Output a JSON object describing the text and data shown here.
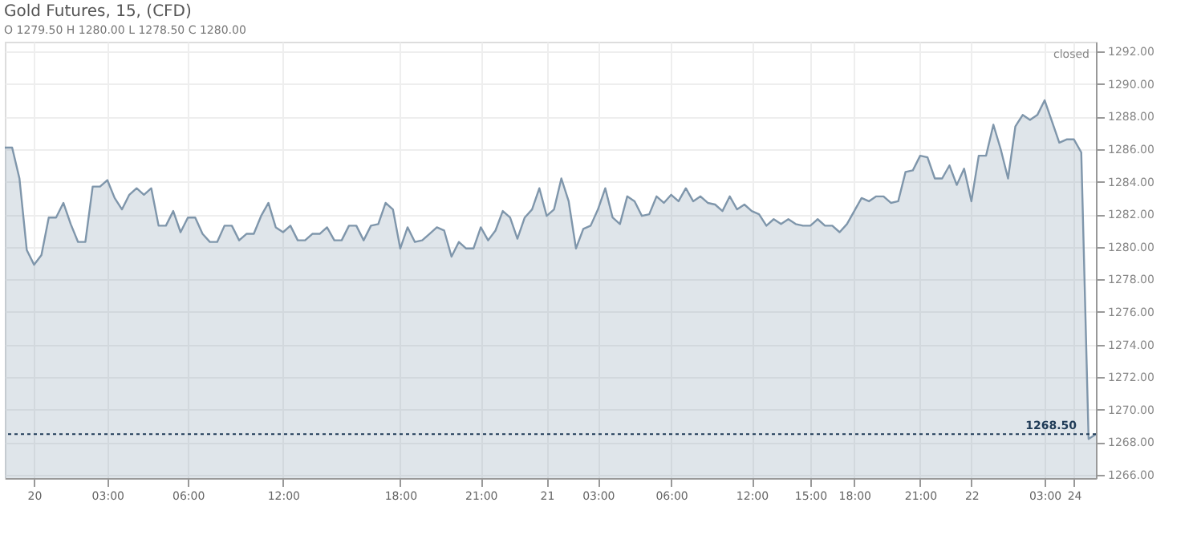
{
  "chart_data": {
    "type": "area",
    "title": "Gold Futures, 15, (CFD)",
    "subtitle": "O 1279.50 H 1280.00 L 1278.50 C 1280.00",
    "annotations": [
      "closed"
    ],
    "categories": [
      null,
      null,
      null,
      null,
      "20",
      null,
      null,
      null,
      null,
      null,
      null,
      null,
      null,
      null,
      "03:00",
      null,
      null,
      null,
      null,
      null,
      null,
      null,
      null,
      null,
      null,
      "06:00",
      null,
      null,
      null,
      null,
      null,
      null,
      null,
      null,
      null,
      null,
      null,
      null,
      "12:00",
      null,
      null,
      null,
      null,
      null,
      null,
      null,
      null,
      null,
      null,
      null,
      null,
      null,
      null,
      null,
      "18:00",
      null,
      null,
      null,
      null,
      null,
      null,
      null,
      null,
      null,
      null,
      "21:00",
      null,
      null,
      null,
      null,
      null,
      null,
      null,
      null,
      "21",
      null,
      null,
      null,
      null,
      null,
      null,
      "03:00",
      null,
      null,
      null,
      null,
      null,
      null,
      null,
      null,
      null,
      "06:00",
      null,
      null,
      null,
      null,
      null,
      null,
      null,
      null,
      null,
      null,
      "12:00",
      null,
      null,
      null,
      null,
      null,
      null,
      null,
      "15:00",
      null,
      null,
      null,
      null,
      null,
      "18:00",
      null,
      null,
      null,
      null,
      null,
      null,
      null,
      null,
      "21:00",
      null,
      null,
      null,
      null,
      null,
      null,
      "22",
      null,
      null,
      null,
      null,
      null,
      null,
      null,
      null,
      null,
      "03:00",
      null,
      null,
      null,
      "24",
      null,
      null,
      null
    ],
    "series": [
      {
        "color": "#7f96ab",
        "values": [
          1286.1,
          1286.1,
          1284.2,
          1279.8,
          1278.9,
          1279.5,
          1281.8,
          1281.8,
          1282.7,
          1281.4,
          1280.3,
          1280.3,
          1283.7,
          1283.7,
          1284.1,
          1283.0,
          1282.3,
          1283.2,
          1283.6,
          1283.2,
          1283.6,
          1281.3,
          1281.3,
          1282.2,
          1280.9,
          1281.8,
          1281.8,
          1280.8,
          1280.3,
          1280.3,
          1281.3,
          1281.3,
          1280.4,
          1280.8,
          1280.8,
          1281.9,
          1282.7,
          1281.2,
          1280.9,
          1281.3,
          1280.4,
          1280.4,
          1280.8,
          1280.8,
          1281.2,
          1280.4,
          1280.4,
          1281.3,
          1281.3,
          1280.4,
          1281.3,
          1281.4,
          1282.7,
          1282.3,
          1279.9,
          1281.2,
          1280.3,
          1280.4,
          1280.8,
          1281.2,
          1281.0,
          1279.4,
          1280.3,
          1279.9,
          1279.9,
          1281.2,
          1280.4,
          1281.0,
          1282.2,
          1281.8,
          1280.5,
          1281.8,
          1282.3,
          1283.6,
          1281.9,
          1282.3,
          1284.2,
          1282.8,
          1279.9,
          1281.1,
          1281.3,
          1282.3,
          1283.6,
          1281.8,
          1281.4,
          1283.1,
          1282.8,
          1281.9,
          1282.0,
          1283.1,
          1282.7,
          1283.2,
          1282.8,
          1283.6,
          1282.8,
          1283.1,
          1282.7,
          1282.6,
          1282.2,
          1283.1,
          1282.3,
          1282.6,
          1282.2,
          1282.0,
          1281.3,
          1281.7,
          1281.4,
          1281.7,
          1281.4,
          1281.3,
          1281.3,
          1281.7,
          1281.3,
          1281.3,
          1280.9,
          1281.4,
          1282.2,
          1283.0,
          1282.8,
          1283.1,
          1283.1,
          1282.7,
          1282.8,
          1284.6,
          1284.7,
          1285.6,
          1285.5,
          1284.2,
          1284.2,
          1285.0,
          1283.8,
          1284.8,
          1282.8,
          1285.6,
          1285.6,
          1287.5,
          1286.0,
          1284.2,
          1287.4,
          1288.1,
          1287.8,
          1288.1,
          1289.0,
          1287.7,
          1286.4,
          1286.6,
          1286.6,
          1285.8,
          1268.2,
          1268.5
        ]
      }
    ],
    "ylim": [
      1265.8,
      1292.6
    ],
    "yticks": [
      {
        "value": 1266,
        "label": "1266.00"
      },
      {
        "value": 1268,
        "label": "1268.00"
      },
      {
        "value": 1270,
        "label": "1270.00"
      },
      {
        "value": 1272,
        "label": "1272.00"
      },
      {
        "value": 1274,
        "label": "1274.00"
      },
      {
        "value": 1276,
        "label": "1276.00"
      },
      {
        "value": 1278,
        "label": "1278.00"
      },
      {
        "value": 1280,
        "label": "1280.00"
      },
      {
        "value": 1282,
        "label": "1282.00"
      },
      {
        "value": 1284,
        "label": "1284.00"
      },
      {
        "value": 1286,
        "label": "1286.00"
      },
      {
        "value": 1288,
        "label": "1288.00"
      },
      {
        "value": 1290,
        "label": "1290.00"
      },
      {
        "value": 1292,
        "label": "1292.00"
      }
    ],
    "ref_lines": [
      {
        "axis": "y",
        "value": 1268.5,
        "label": "1268.50",
        "color": "#1f3b57",
        "line_style": "dotted"
      }
    ],
    "grid": true
  }
}
